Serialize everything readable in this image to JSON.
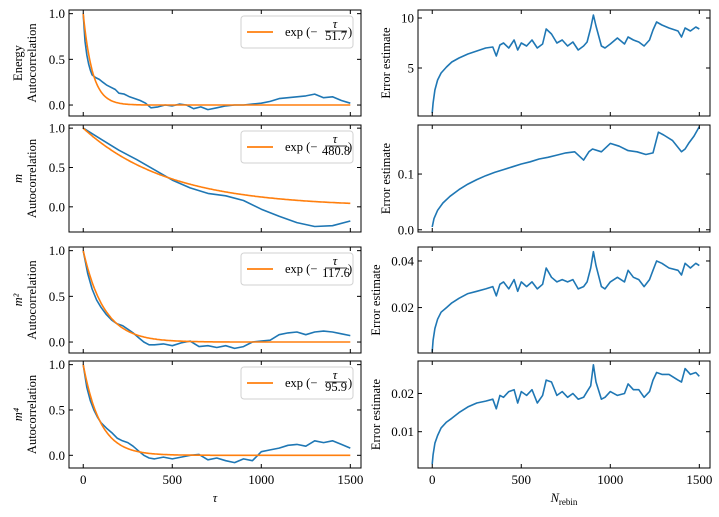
{
  "chart_data": [
    {
      "type": "line",
      "panel": "energy-autocorr",
      "ylabel": [
        "Energy",
        "Autocorrelation"
      ],
      "xlabel": "",
      "xlim": [
        -80,
        1560
      ],
      "ylim": [
        -0.12,
        1.04
      ],
      "xticks": [
        0,
        500,
        1000,
        1500
      ],
      "yticks": [
        0.0,
        0.5,
        1.0
      ],
      "ytick_labels": [
        "0.0",
        "0.5",
        "1.0"
      ],
      "show_xtick_labels": false,
      "legend": {
        "position": "top-right",
        "label_prefix": "exp(−τ/",
        "tau": 51.7,
        "label_suffix": ")"
      },
      "series": [
        {
          "name": "data",
          "color": "#1f77b4",
          "x": [
            0,
            10,
            20,
            30,
            40,
            50,
            70,
            90,
            110,
            130,
            150,
            180,
            200,
            230,
            260,
            290,
            320,
            350,
            380,
            420,
            460,
            500,
            540,
            580,
            620,
            660,
            700,
            750,
            800,
            850,
            900,
            950,
            1000,
            1050,
            1100,
            1150,
            1200,
            1250,
            1300,
            1350,
            1400,
            1450,
            1500
          ],
          "y": [
            1.0,
            0.7,
            0.55,
            0.45,
            0.38,
            0.33,
            0.3,
            0.28,
            0.25,
            0.22,
            0.2,
            0.17,
            0.13,
            0.12,
            0.09,
            0.07,
            0.05,
            0.02,
            -0.03,
            -0.02,
            0.0,
            -0.01,
            0.01,
            0.0,
            -0.04,
            -0.02,
            -0.05,
            -0.03,
            -0.01,
            0.0,
            0.0,
            0.01,
            0.02,
            0.04,
            0.07,
            0.08,
            0.09,
            0.1,
            0.12,
            0.08,
            0.09,
            0.05,
            0.02
          ]
        },
        {
          "name": "exp fit",
          "color": "#ff7f0e",
          "tau": 51.7
        }
      ]
    },
    {
      "type": "line",
      "panel": "energy-error",
      "ylabel": [
        "Error estimate"
      ],
      "xlabel": "",
      "xlim": [
        -80,
        1560
      ],
      "ylim": [
        0.2,
        10.8
      ],
      "xticks": [
        0,
        500,
        1000,
        1500
      ],
      "yticks": [
        5,
        10
      ],
      "ytick_labels": [
        "5",
        "10"
      ],
      "show_xtick_labels": false,
      "series": [
        {
          "name": "data",
          "color": "#1f77b4",
          "x": [
            0,
            5,
            15,
            30,
            50,
            80,
            110,
            150,
            200,
            250,
            300,
            340,
            360,
            380,
            400,
            430,
            460,
            480,
            500,
            530,
            560,
            590,
            620,
            640,
            670,
            700,
            730,
            760,
            790,
            820,
            850,
            870,
            890,
            905,
            920,
            950,
            970,
            1000,
            1040,
            1080,
            1100,
            1130,
            1160,
            1190,
            1220,
            1240,
            1260,
            1290,
            1330,
            1380,
            1400,
            1420,
            1450,
            1480,
            1500
          ],
          "y": [
            0.5,
            1.5,
            2.8,
            3.8,
            4.5,
            5.1,
            5.6,
            6.0,
            6.4,
            6.7,
            7.0,
            7.1,
            6.2,
            7.3,
            7.5,
            7.0,
            7.8,
            6.8,
            7.5,
            7.2,
            7.8,
            7.0,
            7.4,
            8.9,
            8.4,
            7.5,
            7.8,
            7.2,
            7.6,
            6.8,
            7.2,
            7.6,
            9.0,
            10.3,
            9.2,
            7.2,
            7.0,
            7.4,
            8.0,
            7.4,
            8.1,
            7.8,
            7.6,
            7.2,
            7.8,
            8.8,
            9.6,
            9.3,
            9.0,
            8.7,
            8.1,
            9.0,
            8.7,
            9.1,
            8.9
          ]
        },
        {
          "name": "none",
          "color": "#1f77b4"
        }
      ]
    },
    {
      "type": "line",
      "panel": "m-autocorr",
      "ylabel": [
        "m",
        "Autocorrelation"
      ],
      "xlabel": "",
      "xlim": [
        -80,
        1560
      ],
      "ylim": [
        -0.32,
        1.04
      ],
      "xticks": [
        0,
        500,
        1000,
        1500
      ],
      "yticks": [
        0.0,
        0.5,
        1.0
      ],
      "ytick_labels": [
        "0.0",
        "0.5",
        "1.0"
      ],
      "show_xtick_labels": false,
      "legend": {
        "position": "top-right",
        "label_prefix": "exp(−τ/",
        "tau": 480.8,
        "label_suffix": ")"
      },
      "series": [
        {
          "name": "data",
          "color": "#1f77b4",
          "x": [
            0,
            100,
            200,
            300,
            400,
            500,
            600,
            700,
            800,
            900,
            1000,
            1100,
            1200,
            1300,
            1400,
            1500
          ],
          "y": [
            1.0,
            0.86,
            0.72,
            0.6,
            0.47,
            0.34,
            0.24,
            0.17,
            0.14,
            0.08,
            -0.03,
            -0.12,
            -0.2,
            -0.25,
            -0.24,
            -0.18
          ]
        },
        {
          "name": "exp fit",
          "color": "#ff7f0e",
          "tau": 480.8
        }
      ]
    },
    {
      "type": "line",
      "panel": "m-error",
      "ylabel": [
        "Error estimate"
      ],
      "xlabel": "",
      "xlim": [
        -80,
        1560
      ],
      "ylim": [
        -0.004,
        0.188
      ],
      "xticks": [
        0,
        500,
        1000,
        1500
      ],
      "yticks": [
        0.0,
        0.1
      ],
      "ytick_labels": [
        "0.0",
        "0.1"
      ],
      "show_xtick_labels": false,
      "series": [
        {
          "name": "data",
          "color": "#1f77b4",
          "x": [
            0,
            10,
            30,
            60,
            100,
            150,
            200,
            250,
            300,
            350,
            400,
            450,
            500,
            550,
            600,
            650,
            700,
            750,
            800,
            850,
            880,
            900,
            950,
            1000,
            1050,
            1100,
            1150,
            1200,
            1240,
            1270,
            1300,
            1350,
            1400,
            1420,
            1440,
            1470,
            1500
          ],
          "y": [
            0.005,
            0.02,
            0.035,
            0.048,
            0.06,
            0.072,
            0.082,
            0.09,
            0.097,
            0.103,
            0.108,
            0.113,
            0.118,
            0.122,
            0.127,
            0.13,
            0.134,
            0.138,
            0.14,
            0.125,
            0.14,
            0.145,
            0.14,
            0.155,
            0.15,
            0.142,
            0.14,
            0.135,
            0.138,
            0.175,
            0.17,
            0.16,
            0.14,
            0.145,
            0.155,
            0.168,
            0.185
          ]
        },
        {
          "name": "none",
          "color": "#1f77b4"
        }
      ]
    },
    {
      "type": "line",
      "panel": "m2-autocorr",
      "ylabel": [
        "m²",
        "Autocorrelation"
      ],
      "xlabel": "",
      "xlim": [
        -80,
        1560
      ],
      "ylim": [
        -0.12,
        1.04
      ],
      "xticks": [
        0,
        500,
        1000,
        1500
      ],
      "yticks": [
        0.0,
        0.5,
        1.0
      ],
      "ytick_labels": [
        "0.0",
        "0.5",
        "1.0"
      ],
      "show_xtick_labels": false,
      "legend": {
        "position": "top-right",
        "label_prefix": "exp(−τ/",
        "tau": 117.6,
        "label_suffix": ")"
      },
      "series": [
        {
          "name": "data",
          "color": "#1f77b4",
          "x": [
            0,
            25,
            50,
            75,
            100,
            130,
            160,
            190,
            220,
            250,
            280,
            310,
            340,
            370,
            400,
            450,
            500,
            550,
            600,
            650,
            700,
            750,
            800,
            850,
            900,
            950,
            1000,
            1050,
            1100,
            1150,
            1200,
            1250,
            1300,
            1350,
            1400,
            1450,
            1500
          ],
          "y": [
            1.0,
            0.75,
            0.58,
            0.46,
            0.38,
            0.3,
            0.24,
            0.2,
            0.18,
            0.14,
            0.1,
            0.05,
            0.0,
            -0.03,
            -0.03,
            -0.02,
            -0.04,
            -0.01,
            0.01,
            -0.05,
            -0.04,
            -0.06,
            -0.04,
            -0.07,
            -0.05,
            0.0,
            0.01,
            0.02,
            0.08,
            0.1,
            0.11,
            0.08,
            0.11,
            0.12,
            0.11,
            0.09,
            0.07
          ]
        },
        {
          "name": "exp fit",
          "color": "#ff7f0e",
          "tau": 117.6
        }
      ]
    },
    {
      "type": "line",
      "panel": "m2-error",
      "ylabel": [
        "Error estimate"
      ],
      "xlabel": "",
      "xlim": [
        -80,
        1560
      ],
      "ylim": [
        0.0005,
        0.046
      ],
      "xticks": [
        0,
        500,
        1000,
        1500
      ],
      "yticks": [
        0.02,
        0.04
      ],
      "ytick_labels": [
        "0.02",
        "0.04"
      ],
      "show_xtick_labels": false,
      "series": [
        {
          "name": "data",
          "color": "#1f77b4",
          "x": [
            0,
            5,
            15,
            30,
            50,
            80,
            110,
            150,
            200,
            250,
            300,
            340,
            360,
            380,
            400,
            430,
            460,
            480,
            500,
            530,
            560,
            590,
            620,
            640,
            670,
            700,
            730,
            760,
            790,
            820,
            850,
            870,
            890,
            905,
            920,
            950,
            970,
            1000,
            1040,
            1080,
            1100,
            1130,
            1160,
            1190,
            1220,
            1240,
            1260,
            1290,
            1330,
            1380,
            1400,
            1420,
            1450,
            1480,
            1500
          ],
          "y": [
            0.001,
            0.006,
            0.011,
            0.015,
            0.018,
            0.02,
            0.022,
            0.024,
            0.026,
            0.027,
            0.028,
            0.029,
            0.025,
            0.03,
            0.031,
            0.028,
            0.032,
            0.027,
            0.031,
            0.029,
            0.031,
            0.028,
            0.03,
            0.037,
            0.033,
            0.031,
            0.032,
            0.031,
            0.032,
            0.028,
            0.029,
            0.031,
            0.037,
            0.044,
            0.038,
            0.029,
            0.028,
            0.031,
            0.033,
            0.031,
            0.036,
            0.033,
            0.032,
            0.029,
            0.032,
            0.036,
            0.04,
            0.039,
            0.037,
            0.036,
            0.034,
            0.039,
            0.037,
            0.039,
            0.038
          ]
        },
        {
          "name": "none",
          "color": "#1f77b4"
        }
      ]
    },
    {
      "type": "line",
      "panel": "m4-autocorr",
      "ylabel": [
        "m⁴",
        "Autocorrelation"
      ],
      "xlabel": "τ",
      "xlim": [
        -80,
        1560
      ],
      "ylim": [
        -0.14,
        1.04
      ],
      "xticks": [
        0,
        500,
        1000,
        1500
      ],
      "yticks": [
        0.0,
        0.5,
        1.0
      ],
      "ytick_labels": [
        "0.0",
        "0.5",
        "1.0"
      ],
      "show_xtick_labels": true,
      "xtick_labels": [
        "0",
        "500",
        "1000",
        "1500"
      ],
      "legend": {
        "position": "top-right",
        "label_prefix": "exp(−τ/",
        "tau": 95.9,
        "label_suffix": ")"
      },
      "series": [
        {
          "name": "data",
          "color": "#1f77b4",
          "x": [
            0,
            20,
            40,
            60,
            80,
            100,
            130,
            160,
            190,
            220,
            250,
            280,
            310,
            340,
            370,
            400,
            450,
            500,
            550,
            600,
            650,
            700,
            750,
            800,
            850,
            900,
            950,
            1000,
            1050,
            1100,
            1150,
            1200,
            1250,
            1300,
            1350,
            1400,
            1450,
            1500
          ],
          "y": [
            1.0,
            0.75,
            0.6,
            0.5,
            0.42,
            0.36,
            0.3,
            0.25,
            0.19,
            0.16,
            0.14,
            0.1,
            0.05,
            0.0,
            -0.03,
            -0.04,
            -0.02,
            -0.04,
            -0.02,
            0.0,
            0.01,
            -0.05,
            -0.03,
            -0.06,
            -0.08,
            -0.04,
            -0.06,
            0.04,
            0.06,
            0.08,
            0.11,
            0.12,
            0.1,
            0.16,
            0.14,
            0.16,
            0.12,
            0.08
          ]
        },
        {
          "name": "exp fit",
          "color": "#ff7f0e",
          "tau": 95.9
        }
      ]
    },
    {
      "type": "line",
      "panel": "m4-error",
      "ylabel": [
        "Error estimate"
      ],
      "xlabel": "N_rebin",
      "xlim": [
        -80,
        1560
      ],
      "ylim": [
        0.0005,
        0.0285
      ],
      "xticks": [
        0,
        500,
        1000,
        1500
      ],
      "yticks": [
        0.01,
        0.02
      ],
      "ytick_labels": [
        "0.01",
        "0.02"
      ],
      "show_xtick_labels": true,
      "xtick_labels": [
        "0",
        "500",
        "1000",
        "1500"
      ],
      "series": [
        {
          "name": "data",
          "color": "#1f77b4",
          "x": [
            0,
            5,
            15,
            30,
            50,
            80,
            110,
            150,
            200,
            250,
            300,
            340,
            360,
            380,
            400,
            430,
            460,
            480,
            500,
            530,
            560,
            590,
            620,
            640,
            670,
            700,
            730,
            760,
            790,
            820,
            850,
            870,
            890,
            905,
            920,
            950,
            970,
            1000,
            1040,
            1080,
            1100,
            1130,
            1160,
            1190,
            1220,
            1240,
            1260,
            1290,
            1330,
            1380,
            1400,
            1420,
            1450,
            1480,
            1500
          ],
          "y": [
            0.0015,
            0.004,
            0.007,
            0.009,
            0.011,
            0.0125,
            0.0135,
            0.015,
            0.0165,
            0.0175,
            0.018,
            0.0185,
            0.016,
            0.0195,
            0.019,
            0.0205,
            0.021,
            0.0175,
            0.0205,
            0.0195,
            0.021,
            0.0175,
            0.0195,
            0.0235,
            0.023,
            0.0195,
            0.0205,
            0.019,
            0.02,
            0.0185,
            0.019,
            0.0205,
            0.022,
            0.0275,
            0.023,
            0.0185,
            0.019,
            0.0205,
            0.0195,
            0.02,
            0.0225,
            0.021,
            0.021,
            0.019,
            0.0205,
            0.0235,
            0.0255,
            0.025,
            0.025,
            0.0235,
            0.023,
            0.0265,
            0.025,
            0.0255,
            0.0245
          ]
        },
        {
          "name": "none",
          "color": "#1f77b4"
        }
      ]
    }
  ]
}
